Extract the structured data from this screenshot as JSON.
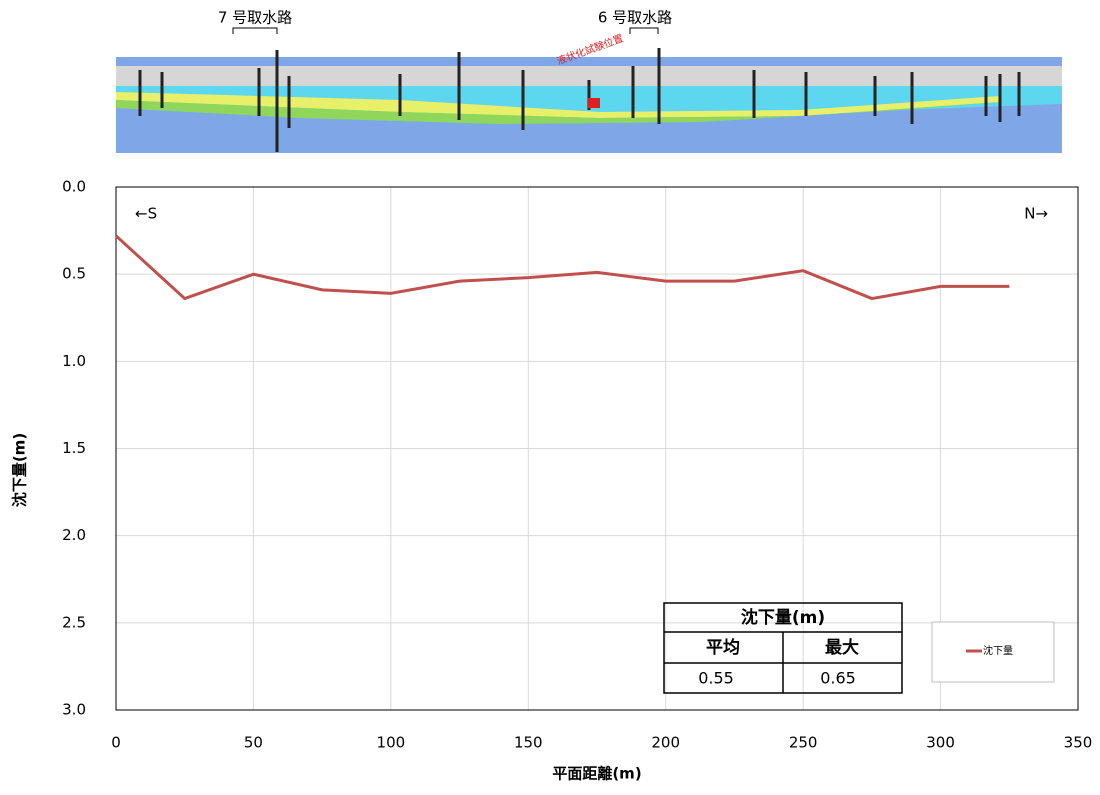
{
  "cross_section": {
    "labels": [
      "7 号取水路",
      "6 号取水路",
      "液状化試験位置"
    ]
  },
  "chart_data": {
    "type": "line",
    "x_label": "平面距離(m)",
    "y_label": "沈下量(m)",
    "annotations": [
      "←S",
      "N→"
    ],
    "x": [
      0,
      25,
      50,
      75,
      100,
      125,
      150,
      175,
      200,
      225,
      250,
      275,
      300,
      325
    ],
    "series": [
      {
        "name": "沈下量",
        "color": "#c0504d",
        "values": [
          0.28,
          0.64,
          0.5,
          0.59,
          0.61,
          0.54,
          0.52,
          0.49,
          0.54,
          0.54,
          0.48,
          0.64,
          0.57,
          0.57
        ]
      }
    ],
    "xlim": [
      0,
      350
    ],
    "xticks": [
      0,
      50,
      100,
      150,
      200,
      250,
      300,
      350
    ],
    "ylim": [
      0,
      3
    ],
    "y_inverted": true,
    "yticks": [
      {
        "value": 0,
        "label": "0.0"
      },
      0.5,
      {
        "value": 1,
        "label": "1.0"
      },
      1.5,
      {
        "value": 2,
        "label": "2.0"
      },
      2.5,
      {
        "value": 3,
        "label": "3.0"
      }
    ],
    "grid": true,
    "legend": "lower right",
    "table": {
      "title": "沈下量(m)",
      "headers": [
        "平均",
        "最大"
      ],
      "values": [
        0.55,
        0.65
      ]
    }
  }
}
